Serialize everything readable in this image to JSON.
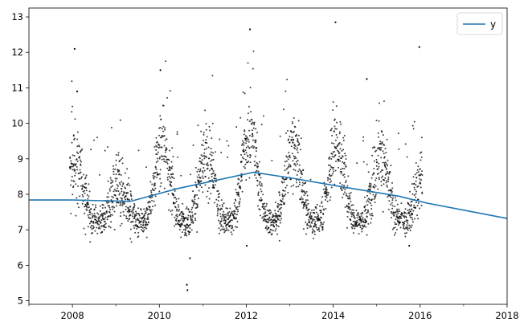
{
  "chart_data": {
    "type": "scatter",
    "title": "",
    "xlabel": "",
    "ylabel": "",
    "xlim": [
      "2007-01-01",
      "2018-01-01"
    ],
    "ylim": [
      4.9,
      13.25
    ],
    "x_ticks": [
      "2008",
      "2010",
      "2012",
      "2014",
      "2016",
      "2018"
    ],
    "y_ticks": [
      "5",
      "6",
      "7",
      "8",
      "9",
      "10",
      "11",
      "12",
      "13"
    ],
    "grid": false,
    "legend": {
      "position": "top-right",
      "entries": [
        "y"
      ]
    },
    "colors": {
      "points": "#000000",
      "trend_line": "#1f77b4"
    },
    "series": [
      {
        "name": "y",
        "kind": "line",
        "x": [
          "2007-01-01",
          "2008-01-01",
          "2009-05-01",
          "2010-06-01",
          "2012-03-01",
          "2013-02-01",
          "2014-03-01",
          "2015-07-01",
          "2016-03-01",
          "2018-01-01"
        ],
        "values": [
          7.84,
          7.84,
          7.8,
          8.16,
          8.62,
          8.45,
          8.22,
          7.95,
          7.75,
          7.32
        ]
      },
      {
        "kind": "scatter",
        "seasonal_points": {
          "date_range": [
            "2007-12-10",
            "2016-01-20"
          ],
          "summer_level": 7.25,
          "winter_level": 8.2,
          "yearly_winter_peaks": [
            {
              "season": "2007-2008",
              "peak": 8.9
            },
            {
              "season": "2008-2009",
              "peak": 8.2
            },
            {
              "season": "2009-2010",
              "peak": 9.4
            },
            {
              "season": "2010-2011",
              "peak": 9.0
            },
            {
              "season": "2011-2012",
              "peak": 9.7
            },
            {
              "season": "2012-2013",
              "peak": 9.3
            },
            {
              "season": "2013-2014",
              "peak": 9.4
            },
            {
              "season": "2014-2015",
              "peak": 9.1
            },
            {
              "season": "2015-2016",
              "peak": 8.6
            }
          ]
        },
        "notable_outliers": [
          {
            "x": "2008-01-20",
            "y": 12.1
          },
          {
            "x": "2008-02-10",
            "y": 10.9
          },
          {
            "x": "2010-01-10",
            "y": 11.5
          },
          {
            "x": "2010-08-20",
            "y": 5.45
          },
          {
            "x": "2010-08-25",
            "y": 5.3
          },
          {
            "x": "2010-09-15",
            "y": 6.2
          },
          {
            "x": "2012-02-01",
            "y": 12.65
          },
          {
            "x": "2012-01-05",
            "y": 6.55
          },
          {
            "x": "2014-01-20",
            "y": 12.85
          },
          {
            "x": "2015-12-25",
            "y": 12.15
          },
          {
            "x": "2014-10-10",
            "y": 11.25
          },
          {
            "x": "2015-10-01",
            "y": 6.55
          }
        ]
      }
    ]
  }
}
